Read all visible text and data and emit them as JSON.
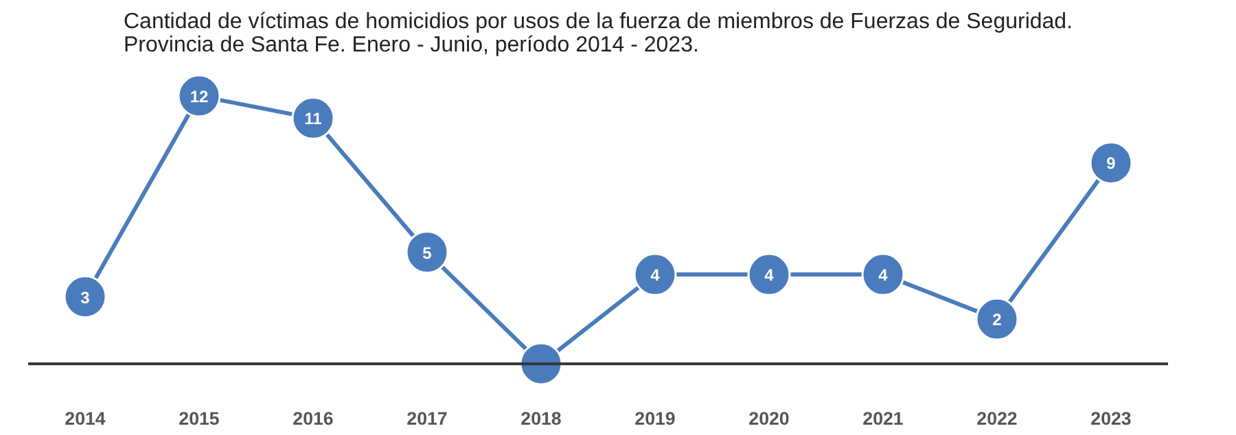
{
  "chart_data": {
    "type": "line",
    "title": "Cantidad de víctimas de homicidios por usos de la fuerza de miembros de Fuerzas de Seguridad. Provincia de Santa Fe. Enero - Junio, período 2014 - 2023.",
    "categories": [
      "2014",
      "2015",
      "2016",
      "2017",
      "2018",
      "2019",
      "2020",
      "2021",
      "2022",
      "2023"
    ],
    "series": [
      {
        "color": "#4a7bbd",
        "values": [
          3,
          12,
          11,
          5,
          0,
          4,
          4,
          4,
          2,
          9
        ],
        "value_labels": [
          "3",
          "12",
          "11",
          "5",
          null,
          "4",
          "4",
          "4",
          "2",
          "9"
        ]
      }
    ],
    "marker": "circle"
  }
}
